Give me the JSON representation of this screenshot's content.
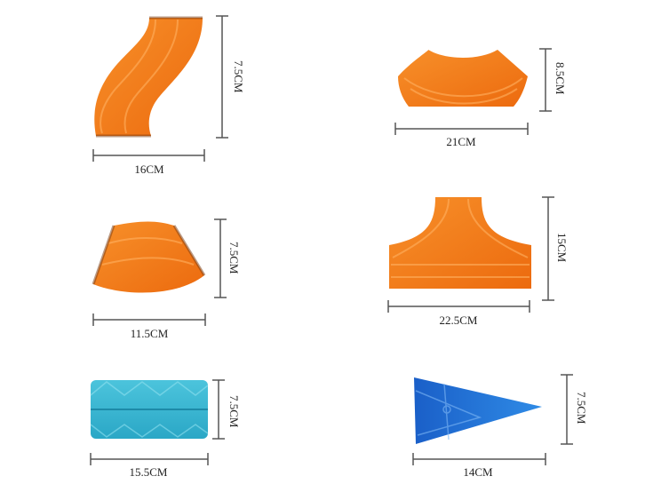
{
  "pieces": [
    {
      "name": "s-curve-track",
      "width_label": "16CM",
      "height_label": "7.5CM",
      "color": "#f07818"
    },
    {
      "name": "arc-track-large",
      "width_label": "21CM",
      "height_label": "8.5CM",
      "color": "#f07818"
    },
    {
      "name": "arc-track-small",
      "width_label": "11.5CM",
      "height_label": "7.5CM",
      "color": "#f07818"
    },
    {
      "name": "fork-track",
      "width_label": "22.5CM",
      "height_label": "15CM",
      "color": "#f07818"
    },
    {
      "name": "blue-square-tile",
      "width_label": "15.5CM",
      "height_label": "7.5CM",
      "color": "#2fb4d0"
    },
    {
      "name": "blue-triangle-tile",
      "width_label": "14CM",
      "height_label": "7.5CM",
      "color": "#1c6fd6"
    }
  ]
}
